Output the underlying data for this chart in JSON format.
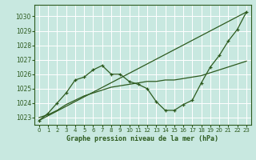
{
  "title": "Graphe pression niveau de la mer (hPa)",
  "bg_color": "#c8e8e0",
  "grid_color": "#ffffff",
  "line_color": "#2d5a1e",
  "x_ticks": [
    0,
    1,
    2,
    3,
    4,
    5,
    6,
    7,
    8,
    9,
    10,
    11,
    12,
    13,
    14,
    15,
    16,
    17,
    18,
    19,
    20,
    21,
    22,
    23
  ],
  "ylim": [
    1022.5,
    1030.8
  ],
  "xlim": [
    -0.5,
    23.5
  ],
  "yticks": [
    1023,
    1024,
    1025,
    1026,
    1027,
    1028,
    1029,
    1030
  ],
  "series1_x": [
    0,
    1,
    2,
    3,
    4,
    5,
    6,
    7,
    8,
    9,
    10,
    11,
    12,
    13,
    14,
    15,
    16,
    17,
    18,
    19,
    20,
    21,
    22,
    23
  ],
  "series1_y": [
    1022.8,
    1023.3,
    1024.0,
    1024.7,
    1025.6,
    1025.8,
    1026.3,
    1026.6,
    1026.0,
    1026.0,
    1025.5,
    1025.3,
    1025.0,
    1024.1,
    1023.5,
    1023.5,
    1023.9,
    1024.2,
    1025.4,
    1026.5,
    1027.3,
    1028.3,
    1029.1,
    1030.3
  ],
  "series2_x": [
    0,
    1,
    2,
    3,
    4,
    5,
    6,
    7,
    8,
    9,
    10,
    11,
    12,
    13,
    14,
    15,
    16,
    17,
    18,
    19,
    20,
    21,
    22,
    23
  ],
  "series2_y": [
    1023.0,
    1023.2,
    1023.5,
    1023.9,
    1024.2,
    1024.5,
    1024.7,
    1024.9,
    1025.1,
    1025.2,
    1025.3,
    1025.4,
    1025.5,
    1025.5,
    1025.6,
    1025.6,
    1025.7,
    1025.8,
    1025.9,
    1026.1,
    1026.3,
    1026.5,
    1026.7,
    1026.9
  ],
  "series3_x": [
    0,
    23
  ],
  "series3_y": [
    1022.8,
    1030.3
  ]
}
